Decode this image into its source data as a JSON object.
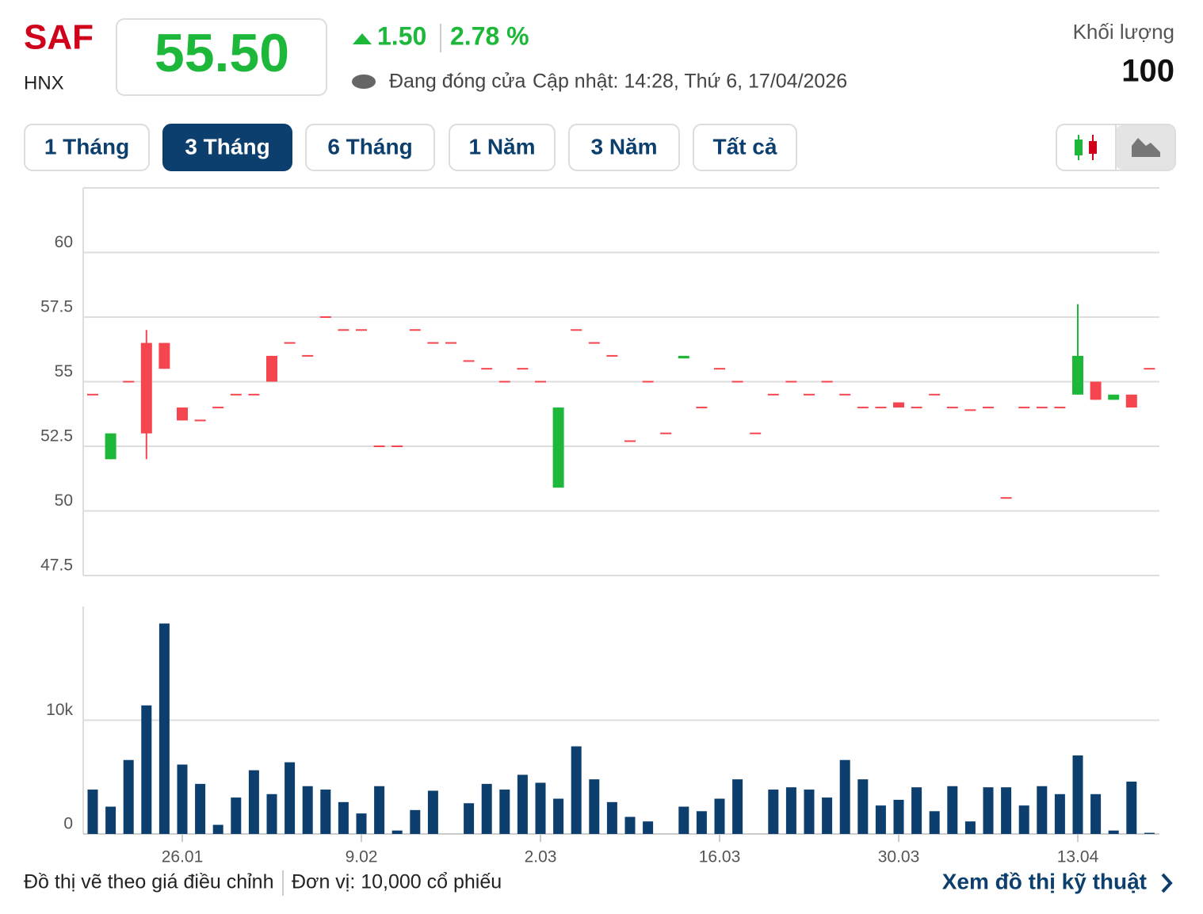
{
  "header": {
    "symbol": "SAF",
    "exchange": "HNX",
    "price": "55.50",
    "change": "1.50",
    "change_pct": "2.78 %",
    "status": "Đang đóng cửa",
    "updated": "Cập nhật: 14:28, Thứ 6, 17/04/2026",
    "volume_label": "Khối lượng",
    "volume": "100"
  },
  "tabs": [
    "1 Tháng",
    "3 Tháng",
    "6 Tháng",
    "1 Năm",
    "3 Năm",
    "Tất cả"
  ],
  "active_tab": 1,
  "chart_data": [
    {
      "type": "candlestick",
      "up_color": "#1db83a",
      "down_color": "#f5464f",
      "grid": true,
      "ylim": [
        47.5,
        62.5
      ],
      "yticks": [
        47.5,
        50,
        52.5,
        55,
        57.5,
        60
      ],
      "open": [
        54.5,
        52.0,
        55,
        56.5,
        56.5,
        54,
        53.5,
        54,
        54.5,
        54.5,
        56,
        56.5,
        56,
        57.5,
        57,
        57,
        52.5,
        52.5,
        57,
        56.5,
        56.5,
        55.8,
        55.5,
        55,
        55.5,
        55,
        50.9,
        57,
        56.5,
        56,
        52.7,
        55,
        53,
        55.9,
        54,
        55.5,
        55,
        53,
        54.5,
        55,
        54.5,
        55,
        54.5,
        54,
        54,
        54.2,
        54,
        54.5,
        54,
        53.9,
        54,
        50.5,
        54,
        54,
        54,
        54.5,
        55,
        54.3,
        54.5,
        55.5
      ],
      "high": [
        54.5,
        53.0,
        55,
        57.0,
        56.5,
        54,
        53.5,
        54,
        54.5,
        54.5,
        56,
        56.5,
        56,
        57.5,
        57,
        57,
        52.5,
        52.5,
        57,
        56.5,
        56.5,
        55.8,
        55.5,
        55,
        55.5,
        55,
        54.0,
        57,
        56.5,
        56,
        52.7,
        55,
        53,
        56.0,
        54,
        55.5,
        55,
        53,
        54.5,
        55,
        54.5,
        55,
        54.5,
        54,
        54,
        54.2,
        54,
        54.5,
        54,
        53.9,
        54,
        50.5,
        54,
        54,
        54,
        58.0,
        55,
        54.5,
        54.5,
        55.5
      ],
      "low": [
        54.5,
        52.0,
        55,
        52.0,
        55.5,
        53.5,
        53.5,
        54,
        54.5,
        54.5,
        55,
        56.5,
        56,
        57.5,
        57,
        57,
        52.5,
        52.5,
        57,
        56.5,
        56.5,
        55.8,
        55.5,
        55,
        55.5,
        55,
        50.9,
        57,
        56.5,
        56,
        52.7,
        55,
        53,
        55.9,
        54,
        55.5,
        55,
        53,
        54.5,
        55,
        54.5,
        55,
        54.5,
        54,
        54,
        54.0,
        54,
        54.5,
        54,
        53.9,
        54,
        50.5,
        54,
        54,
        54,
        54.5,
        54.3,
        54.3,
        54.0,
        55.5
      ],
      "close": [
        54.5,
        53.0,
        55,
        53.0,
        55.5,
        53.5,
        53.5,
        54,
        54.5,
        54.5,
        55,
        56.5,
        56,
        57.5,
        57,
        57,
        52.5,
        52.5,
        57,
        56.5,
        56.5,
        55.8,
        55.5,
        55,
        55.5,
        55,
        54.0,
        57,
        56.5,
        56,
        52.7,
        55,
        53,
        56.0,
        54,
        55.5,
        55,
        53,
        54.5,
        55,
        54.5,
        55,
        54.5,
        54,
        54,
        54.0,
        54,
        54.5,
        54,
        53.9,
        54,
        50.5,
        54,
        54,
        54,
        56.0,
        54.3,
        54.5,
        54.0,
        55.5
      ]
    },
    {
      "type": "bar",
      "color": "#0d3f6e",
      "grid": true,
      "ylim": [
        0,
        20000
      ],
      "yticks": [
        0,
        {
          "value": 10000,
          "label": "10k"
        }
      ],
      "categories": [
        null,
        null,
        null,
        null,
        null,
        "26.01",
        null,
        null,
        null,
        null,
        null,
        null,
        null,
        null,
        null,
        "9.02",
        null,
        null,
        null,
        null,
        null,
        null,
        null,
        null,
        null,
        "2.03",
        null,
        null,
        null,
        null,
        null,
        null,
        null,
        null,
        null,
        "16.03",
        null,
        null,
        null,
        null,
        null,
        null,
        null,
        null,
        null,
        "30.03",
        null,
        null,
        null,
        null,
        null,
        null,
        null,
        null,
        null,
        "13.04",
        null,
        null,
        null,
        null
      ],
      "values": [
        3900,
        2400,
        6500,
        11300,
        18500,
        6100,
        4400,
        800,
        3200,
        5600,
        3500,
        6300,
        4200,
        3900,
        2800,
        1800,
        4200,
        300,
        2100,
        3800,
        0,
        2700,
        4400,
        3900,
        5200,
        4500,
        3100,
        7700,
        4800,
        2800,
        1500,
        1100,
        0,
        2400,
        2000,
        3100,
        4800,
        0,
        3900,
        4100,
        3900,
        3200,
        6500,
        4800,
        2500,
        3000,
        4100,
        2000,
        4200,
        1100,
        4100,
        4100,
        2500,
        4200,
        3500,
        6900,
        3500,
        300,
        4600,
        100
      ]
    }
  ],
  "footer": {
    "note": "Đồ thị vẽ theo giá điều chỉnh",
    "unit": "Đơn vị: 10,000 cổ phiếu",
    "link": "Xem đồ thị kỹ thuật"
  }
}
